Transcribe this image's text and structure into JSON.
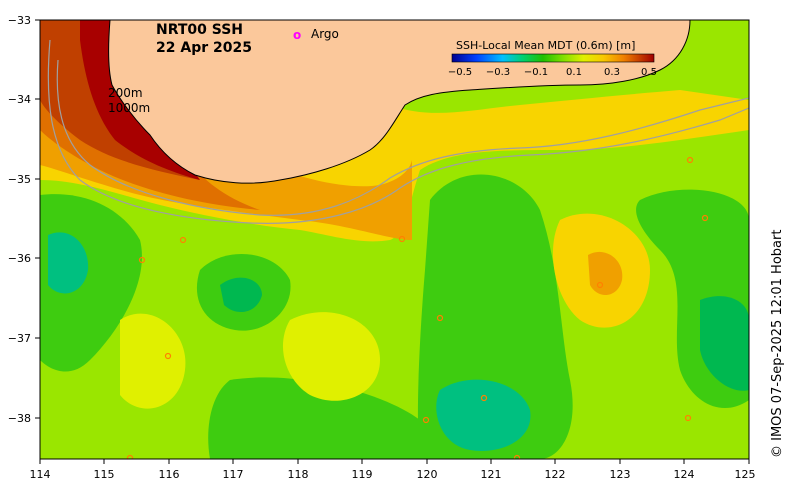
{
  "title_line1": "NRT00 SSH",
  "title_line2": "22 Apr 2025",
  "legend": {
    "argo_symbol": "o",
    "argo_label": "Argo",
    "argo_color": "#ff00ff"
  },
  "contour_labels": {
    "shallow": "200m",
    "deep": "1000m"
  },
  "colorbar": {
    "title": "SSH-Local Mean MDT (0.6m) [m]",
    "ticks": [
      "−0.5",
      "−0.3",
      "−0.1",
      "0.1",
      "0.3",
      "0.5"
    ],
    "colors": [
      "#000090",
      "#0000ff",
      "#0060ff",
      "#00b0ff",
      "#00e0d0",
      "#00d080",
      "#00c040",
      "#30d000",
      "#80e000",
      "#c0f000",
      "#f0f000",
      "#f8d000",
      "#f0a000",
      "#e07000",
      "#c04000",
      "#900000"
    ]
  },
  "axes": {
    "x_ticks": [
      "114",
      "115",
      "116",
      "117",
      "118",
      "119",
      "120",
      "121",
      "122",
      "123",
      "124",
      "125"
    ],
    "y_ticks": [
      "−33",
      "−34",
      "−35",
      "−36",
      "−37",
      "−38"
    ]
  },
  "credit": "© IMOS 07-Sep-2025 12:01 Hobart",
  "colors": {
    "land": "#fbc89b",
    "deep_red": "#a80000",
    "green": "#2fc000",
    "lime": "#78e000"
  }
}
